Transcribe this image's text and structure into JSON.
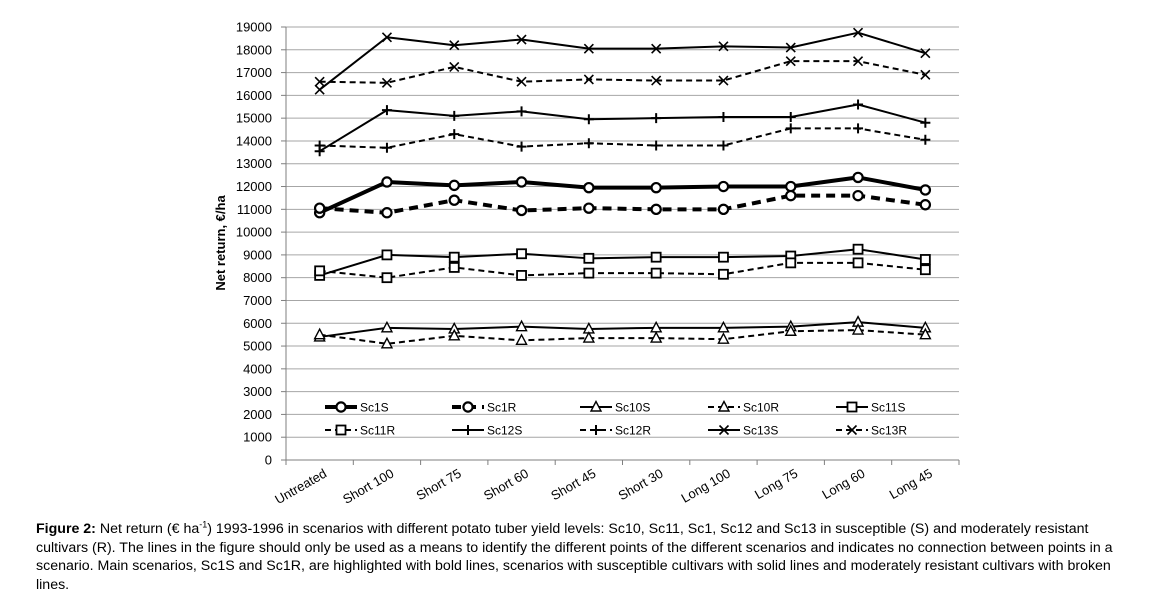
{
  "chart_data": {
    "type": "line",
    "title": "",
    "xlabel": "",
    "ylabel": "Net return, €/ha",
    "ylim": [
      0,
      19000
    ],
    "ytick_step": 1000,
    "grid": true,
    "legend_position": "inside-bottom",
    "categories": [
      "Untreated",
      "Short 100",
      "Short 75",
      "Short 60",
      "Short 45",
      "Short 30",
      "Long 100",
      "Long 75",
      "Long 60",
      "Long 45"
    ],
    "series": [
      {
        "name": "Sc1S",
        "style": "bold-solid",
        "marker": "circle",
        "values": [
          10850,
          12200,
          12050,
          12200,
          11950,
          11950,
          12000,
          12000,
          12400,
          11850
        ]
      },
      {
        "name": "Sc1R",
        "style": "bold-dashed",
        "marker": "circle",
        "values": [
          11050,
          10850,
          11400,
          10950,
          11050,
          11000,
          11000,
          11600,
          11600,
          11200
        ]
      },
      {
        "name": "Sc10S",
        "style": "solid",
        "marker": "triangle",
        "values": [
          5400,
          5800,
          5750,
          5850,
          5750,
          5800,
          5800,
          5850,
          6050,
          5800
        ]
      },
      {
        "name": "Sc10R",
        "style": "dashed",
        "marker": "triangle",
        "values": [
          5500,
          5100,
          5450,
          5250,
          5350,
          5350,
          5300,
          5650,
          5700,
          5500
        ]
      },
      {
        "name": "Sc11S",
        "style": "solid",
        "marker": "square",
        "values": [
          8100,
          9000,
          8900,
          9050,
          8850,
          8900,
          8900,
          8950,
          9250,
          8800
        ]
      },
      {
        "name": "Sc11R",
        "style": "dashed",
        "marker": "square",
        "values": [
          8300,
          8000,
          8450,
          8100,
          8200,
          8200,
          8150,
          8650,
          8650,
          8350
        ]
      },
      {
        "name": "Sc12S",
        "style": "solid",
        "marker": "plus",
        "values": [
          13550,
          15350,
          15100,
          15300,
          14950,
          15000,
          15050,
          15050,
          15600,
          14800
        ]
      },
      {
        "name": "Sc12R",
        "style": "dashed",
        "marker": "plus",
        "values": [
          13800,
          13700,
          14300,
          13750,
          13900,
          13800,
          13800,
          14550,
          14550,
          14050
        ]
      },
      {
        "name": "Sc13S",
        "style": "solid",
        "marker": "x",
        "values": [
          16250,
          18550,
          18200,
          18450,
          18050,
          18050,
          18150,
          18100,
          18750,
          17850
        ]
      },
      {
        "name": "Sc13R",
        "style": "dashed",
        "marker": "x",
        "values": [
          16600,
          16550,
          17250,
          16600,
          16700,
          16650,
          16650,
          17500,
          17500,
          16900
        ]
      }
    ]
  },
  "caption": {
    "label": "Figure 2:",
    "text_before_sup": " Net return (€ ha",
    "sup": "-1",
    "text_after_sup": ") 1993-1996 in scenarios with different potato tuber yield levels: Sc10, Sc11, Sc1, Sc12 and Sc13 in susceptible (S) and moderately resistant cultivars (R). The lines in the figure should only be used as a means to identify the different points of the different scenarios and indicates no connection between points in a scenario. Main scenarios, Sc1S and Sc1R, are highlighted with bold lines, scenarios with susceptible cultivars with solid lines and moderately resistant cultivars with broken lines."
  }
}
